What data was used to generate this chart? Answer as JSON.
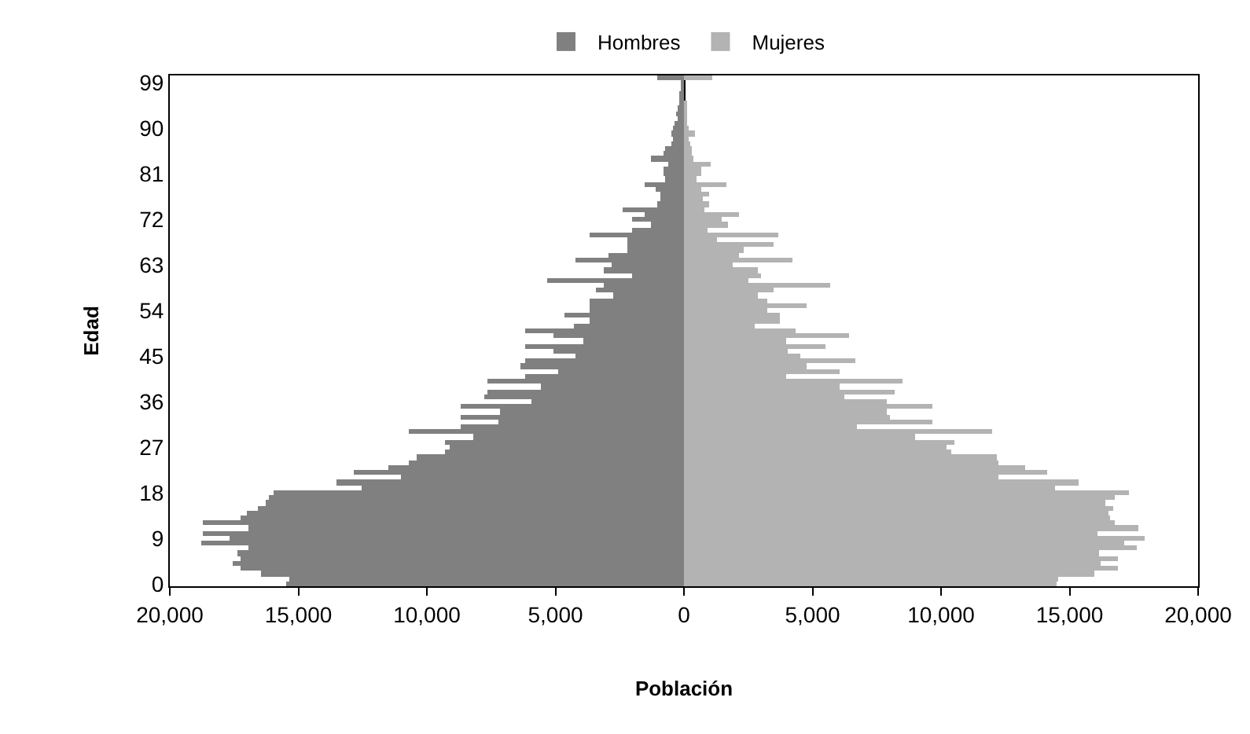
{
  "chart_data": {
    "type": "bar",
    "orientation": "horizontal",
    "stacked": true,
    "xlabel": "Población",
    "ylabel": "Edad",
    "legend": "top",
    "categories": [
      null,
      "99",
      null,
      null,
      null,
      null,
      null,
      null,
      null,
      null,
      "90",
      null,
      null,
      null,
      null,
      null,
      null,
      null,
      null,
      "81",
      null,
      null,
      null,
      null,
      null,
      null,
      null,
      null,
      "72",
      null,
      null,
      null,
      null,
      null,
      null,
      null,
      null,
      "63",
      null,
      null,
      null,
      null,
      null,
      null,
      null,
      null,
      "54",
      null,
      null,
      null,
      null,
      null,
      null,
      null,
      null,
      "45",
      null,
      null,
      null,
      null,
      null,
      null,
      null,
      null,
      "36",
      null,
      null,
      null,
      null,
      null,
      null,
      null,
      null,
      "27",
      null,
      null,
      null,
      null,
      null,
      null,
      null,
      null,
      "18",
      null,
      null,
      null,
      null,
      null,
      null,
      null,
      null,
      "9",
      null,
      null,
      null,
      null,
      null,
      null,
      null,
      null,
      "0"
    ],
    "xlim": [
      -20000,
      20000
    ],
    "xticks": [
      {
        "value": -20000,
        "label": "20,000"
      },
      {
        "value": -15000,
        "label": "15,000"
      },
      {
        "value": -10000,
        "label": "10,000"
      },
      {
        "value": -5000,
        "label": "5,000"
      },
      0,
      {
        "value": 5000,
        "label": "5,000"
      },
      {
        "value": 10000,
        "label": "10,000"
      },
      {
        "value": 15000,
        "label": "15,000"
      },
      {
        "value": 20000,
        "label": "20,000"
      }
    ],
    "series": [
      {
        "name": "Hombres",
        "color": "#808080",
        "values": [
          -1070,
          -100,
          -120,
          -160,
          -160,
          -200,
          -260,
          -300,
          -260,
          -340,
          -400,
          -510,
          -400,
          -510,
          -710,
          -810,
          -1310,
          -610,
          -810,
          -810,
          -710,
          -1520,
          -1110,
          -910,
          -910,
          -1010,
          -2360,
          -1520,
          -2020,
          -1310,
          -2020,
          -3700,
          -2220,
          -2220,
          -2220,
          -2930,
          -4240,
          -2830,
          -3130,
          -2020,
          -5350,
          -3130,
          -3430,
          -2730,
          -3700,
          -3700,
          -3700,
          -4650,
          -3700,
          -4300,
          -6160,
          -5050,
          -3940,
          -6160,
          -5050,
          -4240,
          -6160,
          -6360,
          -4910,
          -6160,
          -7660,
          -5560,
          -7660,
          -7760,
          -5960,
          -8690,
          -7170,
          -8690,
          -7210,
          -8690,
          -10710,
          -8180,
          -9290,
          -9090,
          -9290,
          -10400,
          -10710,
          -11510,
          -12830,
          -11010,
          -13530,
          -12520,
          -15960,
          -16120,
          -16300,
          -16600,
          -17030,
          -17270,
          -18730,
          -16970,
          -18730,
          -17680,
          -18790,
          -16970,
          -17370,
          -17270,
          -17570,
          -17270,
          -16480,
          -15350,
          -15450
        ]
      },
      {
        "name": "Mujeres",
        "color": "#b3b3b3",
        "values": [
          1110,
          null,
          null,
          null,
          null,
          100,
          100,
          140,
          100,
          140,
          200,
          400,
          200,
          260,
          300,
          300,
          360,
          1010,
          650,
          650,
          510,
          1680,
          670,
          950,
          750,
          950,
          810,
          2120,
          1470,
          1720,
          910,
          3640,
          1310,
          3470,
          2320,
          2120,
          4240,
          1880,
          2890,
          2990,
          2530,
          5660,
          3490,
          2890,
          3270,
          4790,
          3270,
          3700,
          3700,
          2730,
          4340,
          6440,
          4000,
          5510,
          4060,
          4550,
          6690,
          4790,
          6060,
          4000,
          8520,
          6060,
          8180,
          6220,
          7860,
          9680,
          7860,
          8040,
          9680,
          6730,
          11980,
          8970,
          10520,
          10240,
          10400,
          12160,
          12220,
          13250,
          14100,
          12220,
          15370,
          14440,
          17310,
          16730,
          16420,
          16710,
          16500,
          16560,
          16770,
          17680,
          16100,
          17920,
          17110,
          17610,
          16120,
          16870,
          16220,
          16870,
          15980,
          14580,
          14500
        ]
      }
    ]
  }
}
